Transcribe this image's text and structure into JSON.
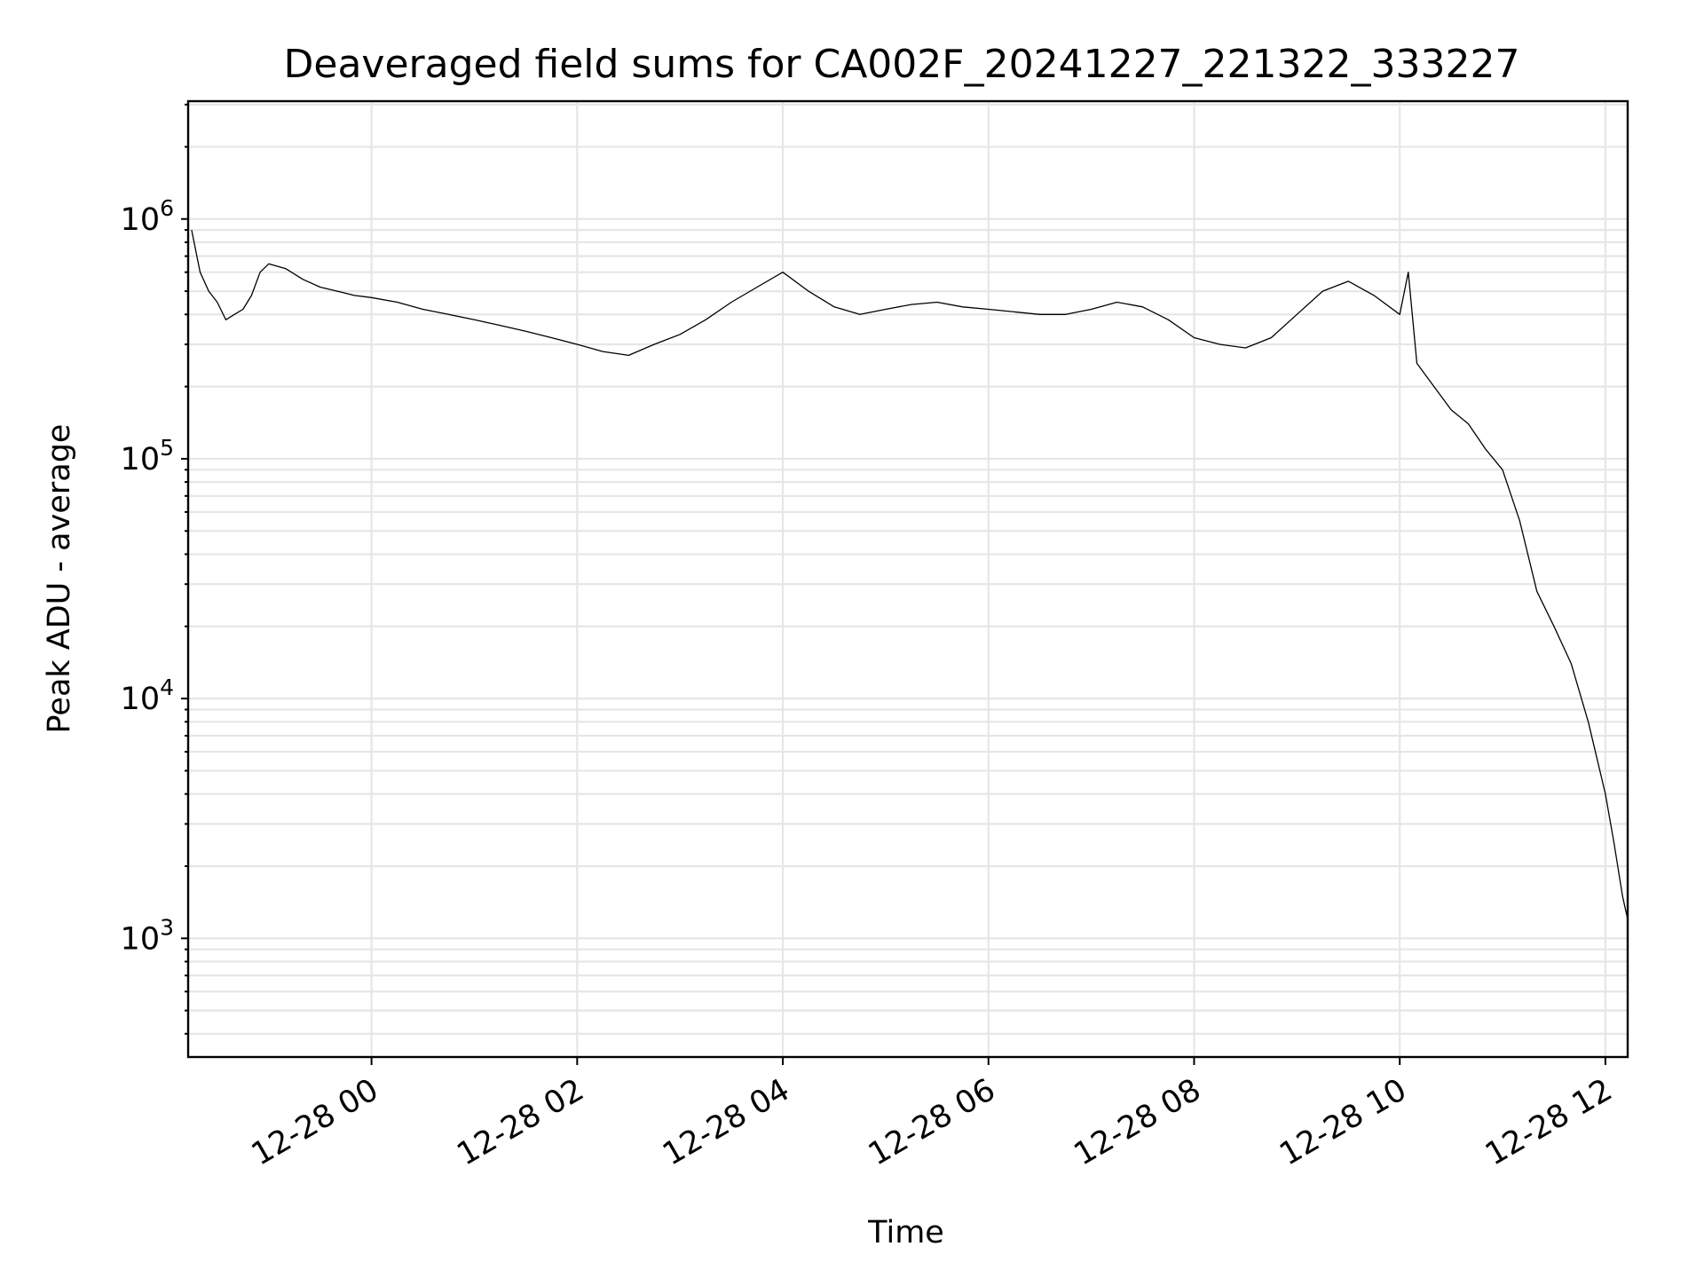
{
  "chart_data": {
    "type": "line",
    "title": "Deaveraged field sums for CA002F_20241227_221322_333227",
    "xlabel": "Time",
    "ylabel": "Peak ADU - average",
    "yscale": "log",
    "xlim": [
      "2024-12-27 22:13",
      "2024-12-28 12:13"
    ],
    "ylim": [
      320,
      3100000
    ],
    "x_ticks": [
      {
        "label": "12-28 00",
        "time": "2024-12-28 00:00"
      },
      {
        "label": "12-28 02",
        "time": "2024-12-28 02:00"
      },
      {
        "label": "12-28 04",
        "time": "2024-12-28 04:00"
      },
      {
        "label": "12-28 06",
        "time": "2024-12-28 06:00"
      },
      {
        "label": "12-28 08",
        "time": "2024-12-28 08:00"
      },
      {
        "label": "12-28 10",
        "time": "2024-12-28 10:00"
      },
      {
        "label": "12-28 12",
        "time": "2024-12-28 12:00"
      }
    ],
    "y_ticks": [
      {
        "base": "10",
        "exp": "3",
        "value": 1000
      },
      {
        "base": "10",
        "exp": "4",
        "value": 10000
      },
      {
        "base": "10",
        "exp": "5",
        "value": 100000
      },
      {
        "base": "10",
        "exp": "6",
        "value": 1000000
      }
    ],
    "grid": true,
    "line_color": "#000000",
    "series": [
      {
        "x": [
          "2024-12-27 22:15",
          "2024-12-27 22:20",
          "2024-12-27 22:25",
          "2024-12-27 22:30",
          "2024-12-27 22:35",
          "2024-12-27 22:40",
          "2024-12-27 22:45",
          "2024-12-27 22:50",
          "2024-12-27 22:55",
          "2024-12-27 23:00",
          "2024-12-27 23:10",
          "2024-12-27 23:20",
          "2024-12-27 23:30",
          "2024-12-27 23:40",
          "2024-12-27 23:50",
          "2024-12-28 00:00",
          "2024-12-28 00:15",
          "2024-12-28 00:30",
          "2024-12-28 00:45",
          "2024-12-28 01:00",
          "2024-12-28 01:15",
          "2024-12-28 01:30",
          "2024-12-28 01:45",
          "2024-12-28 02:00",
          "2024-12-28 02:15",
          "2024-12-28 02:30",
          "2024-12-28 02:45",
          "2024-12-28 03:00",
          "2024-12-28 03:15",
          "2024-12-28 03:30",
          "2024-12-28 03:45",
          "2024-12-28 04:00",
          "2024-12-28 04:15",
          "2024-12-28 04:30",
          "2024-12-28 04:45",
          "2024-12-28 05:00",
          "2024-12-28 05:15",
          "2024-12-28 05:30",
          "2024-12-28 05:45",
          "2024-12-28 06:00",
          "2024-12-28 06:15",
          "2024-12-28 06:30",
          "2024-12-28 06:45",
          "2024-12-28 07:00",
          "2024-12-28 07:15",
          "2024-12-28 07:30",
          "2024-12-28 07:45",
          "2024-12-28 08:00",
          "2024-12-28 08:15",
          "2024-12-28 08:30",
          "2024-12-28 08:45",
          "2024-12-28 09:00",
          "2024-12-28 09:15",
          "2024-12-28 09:30",
          "2024-12-28 09:45",
          "2024-12-28 10:00",
          "2024-12-28 10:05",
          "2024-12-28 10:10",
          "2024-12-28 10:20",
          "2024-12-28 10:30",
          "2024-12-28 10:40",
          "2024-12-28 10:50",
          "2024-12-28 11:00",
          "2024-12-28 11:10",
          "2024-12-28 11:20",
          "2024-12-28 11:30",
          "2024-12-28 11:40",
          "2024-12-28 11:50",
          "2024-12-28 12:00",
          "2024-12-28 12:05",
          "2024-12-28 12:10",
          "2024-12-28 12:13"
        ],
        "y": [
          900000,
          600000,
          500000,
          450000,
          380000,
          400000,
          420000,
          480000,
          600000,
          650000,
          620000,
          560000,
          520000,
          500000,
          480000,
          470000,
          450000,
          420000,
          400000,
          380000,
          360000,
          340000,
          320000,
          300000,
          280000,
          270000,
          300000,
          330000,
          380000,
          450000,
          520000,
          600000,
          500000,
          430000,
          400000,
          420000,
          440000,
          450000,
          430000,
          420000,
          410000,
          400000,
          400000,
          420000,
          450000,
          430000,
          380000,
          320000,
          300000,
          290000,
          320000,
          400000,
          500000,
          550000,
          480000,
          400000,
          600000,
          250000,
          200000,
          160000,
          140000,
          110000,
          90000,
          55000,
          28000,
          20000,
          14000,
          8000,
          4000,
          2500,
          1500,
          1200
        ]
      }
    ]
  }
}
